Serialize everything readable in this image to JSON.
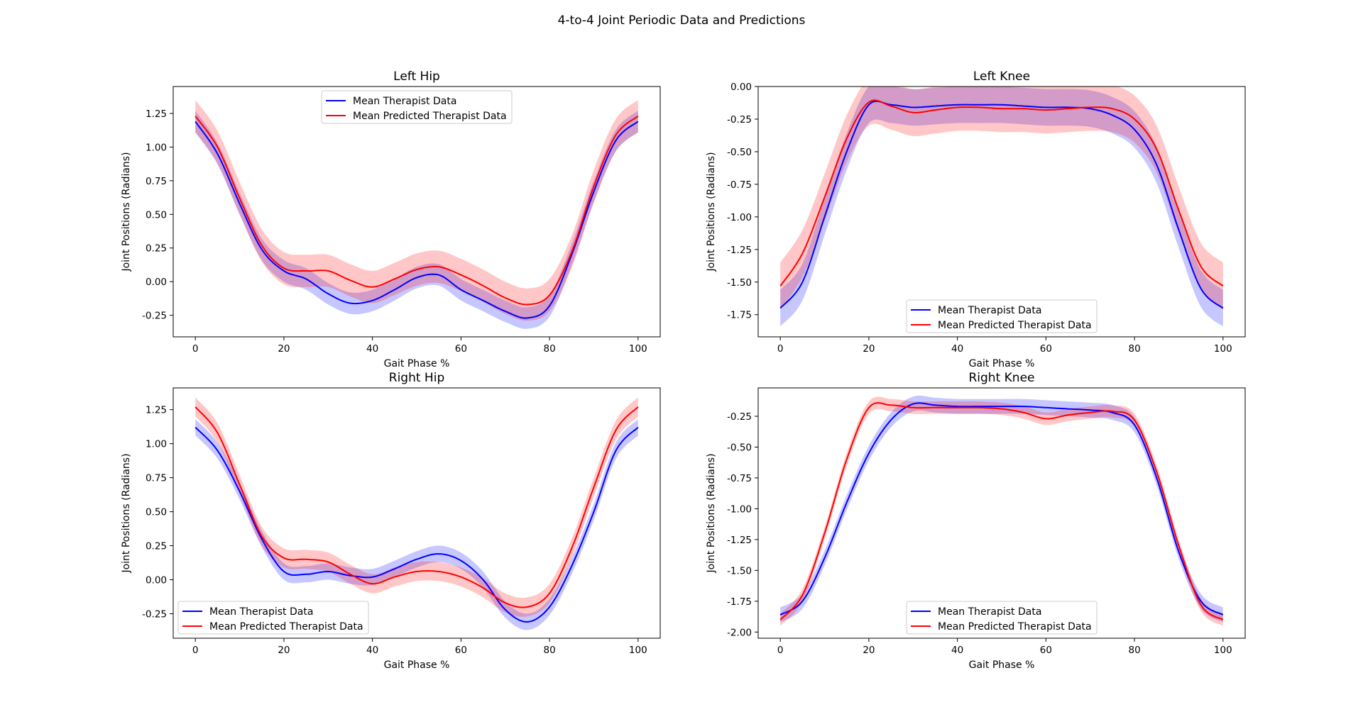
{
  "figure": {
    "suptitle": "4-to-4 Joint Periodic Data and Predictions"
  },
  "colors": {
    "therapist": "#0000ff",
    "predicted": "#ff0000",
    "axes": "#000000",
    "background": "#ffffff"
  },
  "chart_data": [
    {
      "type": "line",
      "title": "Left Hip",
      "xlabel": "Gait Phase %",
      "ylabel": "Joint Positions (Radians)",
      "xlim": [
        -5,
        105
      ],
      "ylim": [
        -0.41,
        1.45
      ],
      "xticks": [
        0,
        20,
        40,
        60,
        80,
        100
      ],
      "yticks": [
        -0.25,
        0.0,
        0.25,
        0.5,
        0.75,
        1.0,
        1.25
      ],
      "ytick_labels": [
        "-0.25",
        "0.00",
        "0.25",
        "0.50",
        "0.75",
        "1.00",
        "1.25"
      ],
      "legend_position": "upper center",
      "legend": [
        "Mean Therapist Data",
        "Mean Predicted Therapist Data"
      ],
      "x": [
        0,
        5,
        10,
        15,
        20,
        25,
        30,
        35,
        40,
        45,
        50,
        55,
        60,
        65,
        70,
        75,
        80,
        85,
        90,
        95,
        100
      ],
      "series": [
        {
          "name": "Mean Therapist Data",
          "color": "blue",
          "values": [
            1.19,
            0.95,
            0.58,
            0.24,
            0.08,
            0.02,
            -0.09,
            -0.16,
            -0.14,
            -0.06,
            0.03,
            0.05,
            -0.06,
            -0.14,
            -0.22,
            -0.27,
            -0.18,
            0.2,
            0.67,
            1.05,
            1.19
          ],
          "band": 0.08
        },
        {
          "name": "Mean Predicted Therapist Data",
          "color": "red",
          "values": [
            1.23,
            1.0,
            0.62,
            0.27,
            0.1,
            0.08,
            0.08,
            0.01,
            -0.04,
            0.02,
            0.09,
            0.11,
            0.05,
            -0.03,
            -0.12,
            -0.17,
            -0.1,
            0.22,
            0.71,
            1.09,
            1.23
          ],
          "band": 0.12
        }
      ]
    },
    {
      "type": "line",
      "title": "Left Knee",
      "xlabel": "Gait Phase %",
      "ylabel": "Joint Positions (Radians)",
      "xlim": [
        -5,
        105
      ],
      "ylim": [
        -1.92,
        0.0
      ],
      "xticks": [
        0,
        20,
        40,
        60,
        80,
        100
      ],
      "yticks": [
        -1.75,
        -1.5,
        -1.25,
        -1.0,
        -0.75,
        -0.5,
        -0.25,
        0.0
      ],
      "ytick_labels": [
        "-1.75",
        "-1.50",
        "-1.25",
        "-1.00",
        "-0.75",
        "-0.50",
        "-0.25",
        "0.00"
      ],
      "legend_position": "lower center",
      "legend": [
        "Mean Therapist Data",
        "Mean Predicted Therapist Data"
      ],
      "x": [
        0,
        5,
        10,
        15,
        20,
        25,
        30,
        35,
        40,
        45,
        50,
        55,
        60,
        65,
        70,
        75,
        80,
        85,
        90,
        95,
        100
      ],
      "series": [
        {
          "name": "Mean Therapist Data",
          "color": "blue",
          "values": [
            -1.7,
            -1.5,
            -1.0,
            -0.5,
            -0.14,
            -0.14,
            -0.16,
            -0.15,
            -0.14,
            -0.14,
            -0.14,
            -0.15,
            -0.16,
            -0.16,
            -0.17,
            -0.22,
            -0.33,
            -0.6,
            -1.1,
            -1.55,
            -1.7
          ],
          "band": 0.14
        },
        {
          "name": "Mean Predicted Therapist Data",
          "color": "red",
          "values": [
            -1.53,
            -1.28,
            -0.85,
            -0.4,
            -0.12,
            -0.15,
            -0.2,
            -0.18,
            -0.16,
            -0.16,
            -0.17,
            -0.17,
            -0.18,
            -0.17,
            -0.16,
            -0.17,
            -0.25,
            -0.48,
            -0.95,
            -1.38,
            -1.53
          ],
          "band": 0.18
        }
      ]
    },
    {
      "type": "line",
      "title": "Right Hip",
      "xlabel": "Gait Phase %",
      "ylabel": "Joint Positions (Radians)",
      "xlim": [
        -5,
        105
      ],
      "ylim": [
        -0.43,
        1.41
      ],
      "xticks": [
        0,
        20,
        40,
        60,
        80,
        100
      ],
      "yticks": [
        -0.25,
        0.0,
        0.25,
        0.5,
        0.75,
        1.0,
        1.25
      ],
      "ytick_labels": [
        "-0.25",
        "0.00",
        "0.25",
        "0.50",
        "0.75",
        "1.00",
        "1.25"
      ],
      "legend_position": "lower left",
      "legend": [
        "Mean Therapist Data",
        "Mean Predicted Therapist Data"
      ],
      "x": [
        0,
        5,
        10,
        15,
        20,
        25,
        30,
        35,
        40,
        45,
        50,
        55,
        60,
        65,
        70,
        75,
        80,
        85,
        90,
        95,
        100
      ],
      "series": [
        {
          "name": "Mean Therapist Data",
          "color": "blue",
          "values": [
            1.12,
            0.95,
            0.65,
            0.3,
            0.06,
            0.04,
            0.06,
            0.03,
            0.02,
            0.08,
            0.15,
            0.19,
            0.14,
            0.0,
            -0.22,
            -0.31,
            -0.2,
            0.1,
            0.5,
            0.95,
            1.12
          ],
          "band": 0.06
        },
        {
          "name": "Mean Predicted Therapist Data",
          "color": "red",
          "values": [
            1.27,
            1.08,
            0.7,
            0.32,
            0.16,
            0.15,
            0.13,
            0.04,
            -0.03,
            0.02,
            0.06,
            0.06,
            0.02,
            -0.06,
            -0.17,
            -0.2,
            -0.1,
            0.23,
            0.68,
            1.1,
            1.27
          ],
          "band": 0.07
        }
      ]
    },
    {
      "type": "line",
      "title": "Right Knee",
      "xlabel": "Gait Phase %",
      "ylabel": "Joint Positions (Radians)",
      "xlim": [
        -5,
        105
      ],
      "ylim": [
        -2.05,
        -0.02
      ],
      "xticks": [
        0,
        20,
        40,
        60,
        80,
        100
      ],
      "yticks": [
        -2.0,
        -1.75,
        -1.5,
        -1.25,
        -1.0,
        -0.75,
        -0.5,
        -0.25
      ],
      "ytick_labels": [
        "-2.00",
        "-1.75",
        "-1.50",
        "-1.25",
        "-1.00",
        "-0.75",
        "-0.50",
        "-0.25"
      ],
      "legend_position": "lower center",
      "legend": [
        "Mean Therapist Data",
        "Mean Predicted Therapist Data"
      ],
      "x": [
        0,
        5,
        10,
        15,
        20,
        25,
        30,
        35,
        40,
        45,
        50,
        55,
        60,
        65,
        70,
        75,
        80,
        85,
        90,
        95,
        100
      ],
      "series": [
        {
          "name": "Mean Therapist Data",
          "color": "blue",
          "values": [
            -1.86,
            -1.75,
            -1.4,
            -0.95,
            -0.55,
            -0.28,
            -0.15,
            -0.16,
            -0.17,
            -0.17,
            -0.17,
            -0.17,
            -0.18,
            -0.19,
            -0.2,
            -0.22,
            -0.32,
            -0.75,
            -1.35,
            -1.75,
            -1.86
          ],
          "band": 0.06
        },
        {
          "name": "Mean Predicted Therapist Data",
          "color": "red",
          "values": [
            -1.9,
            -1.7,
            -1.2,
            -0.6,
            -0.18,
            -0.16,
            -0.18,
            -0.18,
            -0.18,
            -0.18,
            -0.19,
            -0.22,
            -0.27,
            -0.24,
            -0.22,
            -0.21,
            -0.28,
            -0.7,
            -1.3,
            -1.78,
            -1.9
          ],
          "band": 0.05
        }
      ]
    }
  ]
}
